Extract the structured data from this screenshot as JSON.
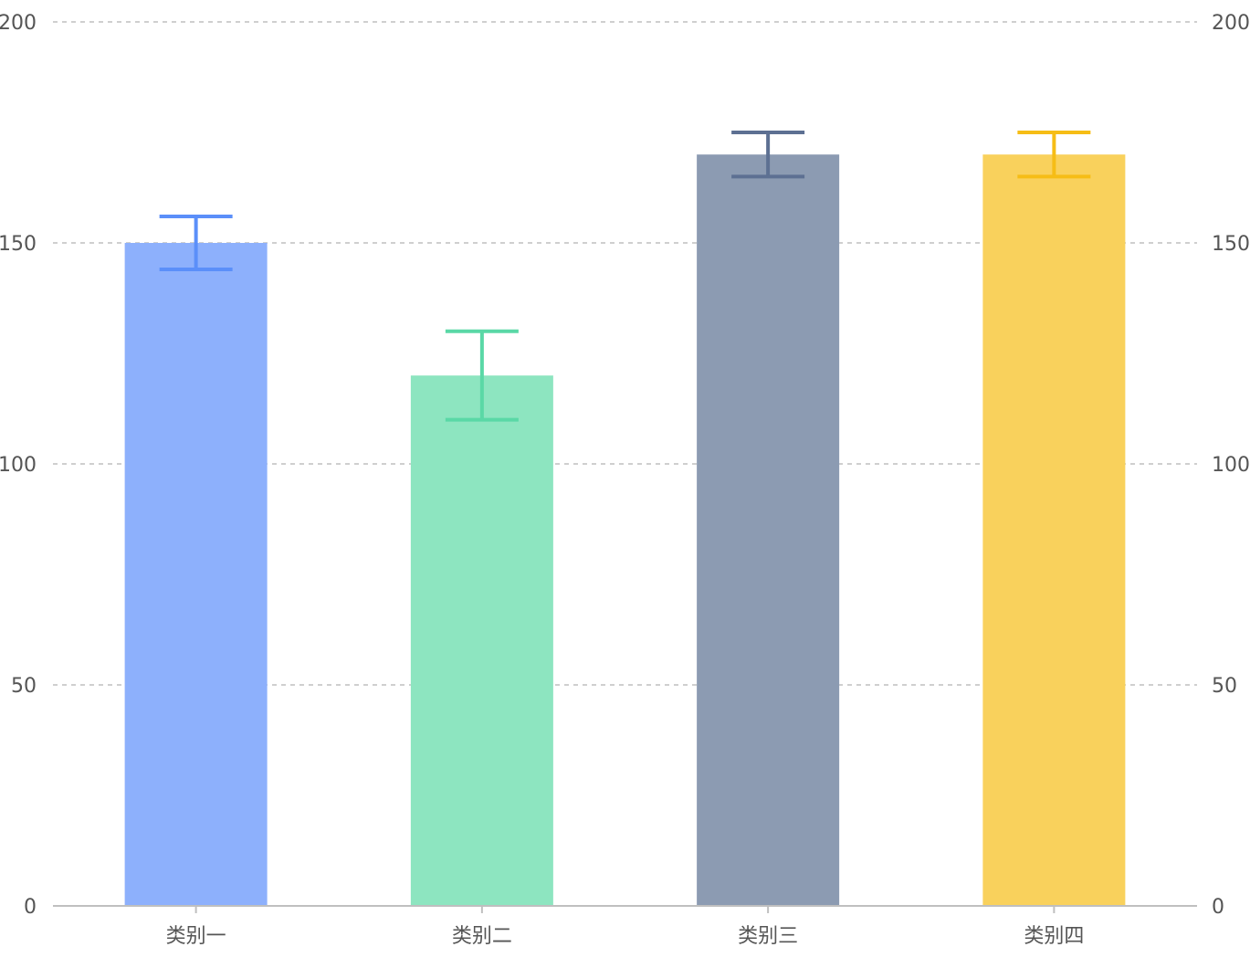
{
  "chart_data": {
    "type": "bar",
    "categories": [
      "类别一",
      "类别二",
      "类别三",
      "类别四"
    ],
    "values": [
      150,
      120,
      170,
      170
    ],
    "error_low": [
      144,
      110,
      165,
      165
    ],
    "error_high": [
      156,
      130,
      175,
      175
    ],
    "bar_colors": [
      "#8DB0FC",
      "#8DE5C0",
      "#8C9BB2",
      "#F9D15C"
    ],
    "error_colors": [
      "#5B8FF9",
      "#5AD8A6",
      "#5D7092",
      "#F6BD16"
    ],
    "ylim": [
      0,
      200
    ],
    "yticks": [
      0,
      50,
      100,
      150,
      200
    ],
    "y_axes": [
      "left",
      "right"
    ],
    "grid": "horizontal-dashed",
    "title": "",
    "xlabel": "",
    "ylabel": ""
  }
}
